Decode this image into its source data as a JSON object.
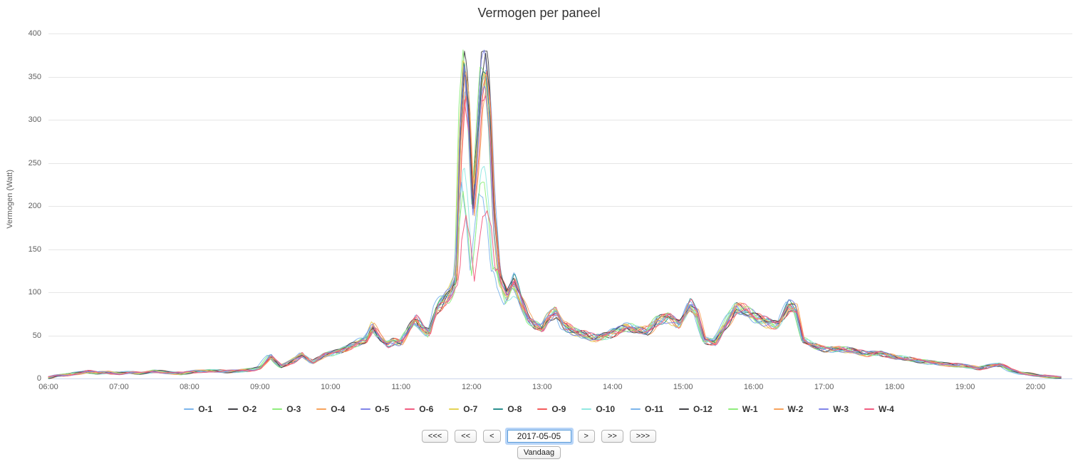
{
  "chart_data": {
    "type": "line",
    "title": "Vermogen per paneel",
    "subtitle": "",
    "xlabel": "",
    "ylabel": "Vermogen (Watt)",
    "ylim": [
      0,
      400
    ],
    "yticks": [
      0,
      50,
      100,
      150,
      200,
      250,
      300,
      350,
      400
    ],
    "xlim": [
      6,
      20.52
    ],
    "xtick_hours": [
      6,
      7,
      8,
      9,
      10,
      11,
      12,
      13,
      14,
      15,
      16,
      17,
      18,
      19,
      20
    ],
    "xtick_labels": [
      "06:00",
      "07:00",
      "08:00",
      "09:00",
      "10:00",
      "11:00",
      "12:00",
      "13:00",
      "14:00",
      "15:00",
      "16:00",
      "17:00",
      "18:00",
      "19:00",
      "20:00"
    ],
    "grid": "horizontal",
    "grid_color": "#e6e6e6",
    "axis_line_color": "#ccd6eb",
    "tick_label_color": "#606060",
    "legend_position": "bottom",
    "legend_text_color": "#333333",
    "base_curve": {
      "x": [
        6.0,
        6.1,
        6.25,
        6.4,
        6.55,
        6.7,
        6.85,
        7.0,
        7.15,
        7.3,
        7.5,
        7.7,
        7.9,
        8.1,
        8.3,
        8.5,
        8.7,
        8.9,
        9.0,
        9.15,
        9.3,
        9.45,
        9.6,
        9.75,
        9.9,
        10.05,
        10.2,
        10.35,
        10.5,
        10.6,
        10.7,
        10.8,
        10.9,
        11.0,
        11.1,
        11.2,
        11.3,
        11.4,
        11.5,
        11.6,
        11.7,
        11.78,
        11.84,
        11.9,
        11.96,
        12.02,
        12.08,
        12.14,
        12.2,
        12.26,
        12.32,
        12.4,
        12.5,
        12.6,
        12.7,
        12.8,
        12.9,
        13.0,
        13.1,
        13.2,
        13.3,
        13.45,
        13.6,
        13.75,
        13.9,
        14.05,
        14.2,
        14.35,
        14.5,
        14.65,
        14.8,
        14.95,
        15.1,
        15.2,
        15.3,
        15.45,
        15.6,
        15.75,
        15.9,
        16.05,
        16.2,
        16.35,
        16.5,
        16.6,
        16.7,
        16.85,
        17.0,
        17.2,
        17.4,
        17.6,
        17.8,
        18.0,
        18.2,
        18.4,
        18.6,
        18.8,
        19.0,
        19.2,
        19.35,
        19.5,
        19.65,
        19.8,
        20.0,
        20.2,
        20.35
      ],
      "y": [
        1,
        3,
        4,
        6,
        8,
        6,
        7,
        6,
        7,
        6,
        8,
        7,
        6,
        8,
        9,
        8,
        9,
        10,
        12,
        26,
        14,
        20,
        28,
        18,
        27,
        30,
        34,
        40,
        44,
        60,
        48,
        40,
        44,
        42,
        55,
        68,
        58,
        52,
        80,
        90,
        100,
        120,
        300,
        375,
        320,
        210,
        280,
        360,
        375,
        320,
        200,
        120,
        95,
        115,
        90,
        70,
        62,
        58,
        72,
        78,
        62,
        55,
        50,
        46,
        50,
        55,
        60,
        56,
        55,
        68,
        72,
        62,
        85,
        75,
        45,
        42,
        62,
        82,
        78,
        70,
        65,
        62,
        85,
        80,
        45,
        38,
        35,
        34,
        32,
        28,
        30,
        25,
        22,
        20,
        18,
        16,
        14,
        12,
        15,
        16,
        10,
        6,
        4,
        2,
        1
      ]
    },
    "series": [
      {
        "name": "O-1",
        "color": "#7cb5ec",
        "peak": 1.0,
        "shift": -0.01,
        "phase": 0.3
      },
      {
        "name": "O-2",
        "color": "#434348",
        "peak": 1.01,
        "shift": 0.005,
        "phase": 1.1
      },
      {
        "name": "O-3",
        "color": "#90ed7d",
        "peak": 0.96,
        "shift": 0.02,
        "phase": 2.0
      },
      {
        "name": "O-4",
        "color": "#f7a35c",
        "peak": 0.93,
        "shift": -0.02,
        "phase": 2.9
      },
      {
        "name": "O-5",
        "color": "#8085e9",
        "peak": 0.97,
        "shift": 0.01,
        "phase": 3.7
      },
      {
        "name": "O-6",
        "color": "#f15c80",
        "peak": 0.87,
        "shift": 0.0,
        "phase": 4.5
      },
      {
        "name": "O-7",
        "color": "#e4d354",
        "peak": 0.95,
        "shift": 0.015,
        "phase": 5.3
      },
      {
        "name": "O-8",
        "color": "#2b908f",
        "peak": 1.01,
        "shift": -0.005,
        "phase": 6.1
      },
      {
        "name": "O-9",
        "color": "#f45b5b",
        "peak": 0.9,
        "shift": -0.015,
        "phase": 0.8
      },
      {
        "name": "O-10",
        "color": "#91e8e1",
        "peak": 0.62,
        "shift": 0.01,
        "phase": 1.6
      },
      {
        "name": "O-11",
        "color": "#7cb5ec",
        "peak": 0.6,
        "shift": 0.04,
        "phase": 2.4
      },
      {
        "name": "O-12",
        "color": "#434348",
        "peak": 0.99,
        "shift": 0.0,
        "phase": 3.2
      },
      {
        "name": "W-1",
        "color": "#90ed7d",
        "peak": 0.58,
        "shift": 0.02,
        "phase": 4.0
      },
      {
        "name": "W-2",
        "color": "#f7a35c",
        "peak": 0.94,
        "shift": -0.01,
        "phase": 4.8
      },
      {
        "name": "W-3",
        "color": "#8085e9",
        "peak": 0.92,
        "shift": 0.005,
        "phase": 5.6
      },
      {
        "name": "W-4",
        "color": "#f15c80",
        "peak": 0.55,
        "shift": -0.02,
        "phase": 6.4
      }
    ]
  },
  "controls": {
    "date_value": "2017-05-05",
    "buttons": {
      "fastest_back": "<<<",
      "fast_back": "<<",
      "back": "<",
      "forward": ">",
      "fast_forward": ">>",
      "fastest_forward": ">>>"
    },
    "today_label": "Vandaag"
  }
}
